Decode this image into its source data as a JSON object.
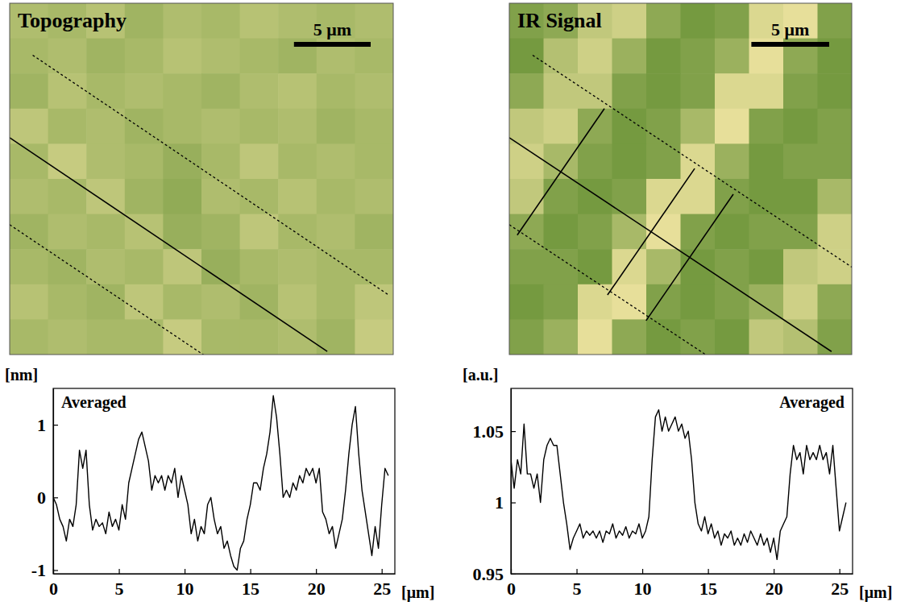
{
  "chart_data": [
    {
      "type": "heatmap",
      "title": "Topography",
      "xlim": [
        0,
        25
      ],
      "ylim": [
        0,
        23
      ],
      "tick_labels": false,
      "clim": [
        -1,
        1
      ],
      "cells": [
        [
          0.1,
          0,
          0.2,
          -0.1,
          0.1,
          0,
          0.2,
          0.1,
          0,
          0.1
        ],
        [
          0,
          0.1,
          -0.1,
          0,
          0.2,
          0.1,
          0,
          -0.1,
          0.1,
          0
        ],
        [
          -0.1,
          0.2,
          0,
          0.1,
          0,
          -0.1,
          0.1,
          0.2,
          0,
          0.1
        ],
        [
          0.3,
          0,
          0.1,
          -0.1,
          0,
          0.1,
          0,
          0.1,
          -0.1,
          0
        ],
        [
          0,
          0.4,
          0.1,
          0,
          -0.2,
          0,
          0.3,
          0,
          0.1,
          0
        ],
        [
          0.1,
          0,
          0.3,
          -0.1,
          -0.3,
          0.1,
          0,
          0.2,
          0,
          0.1
        ],
        [
          -0.1,
          0.1,
          0,
          0.2,
          -0.2,
          -0.1,
          0.3,
          0,
          0.1,
          -0.1
        ],
        [
          0,
          -0.1,
          0.1,
          0,
          0.3,
          -0.2,
          0,
          0.1,
          0,
          0
        ],
        [
          0.2,
          0,
          -0.1,
          0.3,
          0,
          0.1,
          -0.1,
          0.2,
          0,
          0.3
        ],
        [
          0,
          0.1,
          0,
          0,
          0.4,
          0,
          0,
          0.1,
          -0.1,
          0.4
        ]
      ],
      "scale_bar": {
        "length": 5,
        "label": "5 μm"
      },
      "lines": [
        {
          "x": [
            0,
            20.7
          ],
          "y": [
            8.8,
            22.8
          ],
          "line_style": "solid"
        },
        {
          "x": [
            1.5,
            24.7
          ],
          "y": [
            3.4,
            19.1
          ],
          "line_style": "dashed"
        },
        {
          "x": [
            0,
            13.2
          ],
          "y": [
            14.5,
            23.4
          ],
          "line_style": "dashed"
        }
      ]
    },
    {
      "type": "heatmap",
      "title": "IR Signal",
      "xlim": [
        0,
        22
      ],
      "ylim": [
        0,
        23
      ],
      "tick_labels": false,
      "clim": [
        0.95,
        1.07
      ],
      "cells": [
        [
          0.98,
          0.99,
          1.03,
          1.04,
          0.99,
          0.97,
          0.98,
          1.05,
          1.06,
          0.98
        ],
        [
          0.97,
          1.02,
          1.04,
          1.0,
          0.97,
          0.98,
          1.0,
          1.06,
          0.99,
          0.97
        ],
        [
          0.99,
          1.03,
          1.03,
          0.98,
          0.97,
          0.98,
          1.05,
          1.05,
          0.98,
          0.97
        ],
        [
          1.03,
          1.04,
          0.99,
          0.97,
          0.98,
          1.01,
          1.06,
          0.98,
          0.97,
          0.98
        ],
        [
          1.04,
          1.01,
          0.98,
          0.97,
          0.98,
          1.05,
          1.0,
          0.97,
          0.98,
          0.98
        ],
        [
          1.03,
          0.98,
          0.97,
          0.98,
          1.05,
          1.05,
          0.98,
          0.97,
          0.97,
          1.01
        ],
        [
          0.99,
          0.97,
          0.98,
          1.01,
          1.06,
          0.98,
          0.97,
          0.98,
          0.98,
          1.04
        ],
        [
          0.98,
          0.98,
          0.97,
          1.05,
          1.01,
          0.97,
          0.98,
          0.97,
          1.03,
          1.04
        ],
        [
          0.97,
          0.98,
          1.05,
          1.06,
          0.98,
          0.97,
          0.98,
          1.0,
          1.04,
          0.99
        ],
        [
          0.98,
          1.0,
          1.06,
          0.99,
          0.97,
          0.98,
          0.97,
          1.03,
          1.02,
          0.98
        ]
      ],
      "scale_bar": {
        "length": 5,
        "label": "5 μm"
      },
      "lines": [
        {
          "x": [
            0,
            20.7
          ],
          "y": [
            8.8,
            22.8
          ],
          "line_style": "solid"
        },
        {
          "x": [
            1.5,
            24.7
          ],
          "y": [
            3.4,
            19.1
          ],
          "line_style": "dashed"
        },
        {
          "x": [
            0,
            13.2
          ],
          "y": [
            14.5,
            23.4
          ],
          "line_style": "dashed"
        },
        {
          "x": [
            0.51,
            6.11
          ],
          "y": [
            15.18,
            6.9
          ],
          "line_style": "solid"
        },
        {
          "x": [
            6.31,
            11.91
          ],
          "y": [
            19.1,
            10.82
          ],
          "line_style": "solid"
        },
        {
          "x": [
            8.79,
            14.39
          ],
          "y": [
            20.78,
            12.5
          ],
          "line_style": "solid"
        }
      ]
    },
    {
      "type": "line",
      "y_label": "[nm]",
      "x_label": "[μm]",
      "annotation": "Averaged",
      "xlim": [
        0,
        26
      ],
      "ylim": [
        -1.05,
        1.5
      ],
      "xticks": [
        0,
        5,
        10,
        15,
        20,
        25
      ],
      "yticks": [
        -1,
        0,
        1
      ],
      "x": [
        0,
        0.25,
        0.5,
        0.75,
        1,
        1.25,
        1.5,
        1.75,
        2,
        2.25,
        2.5,
        2.75,
        3,
        3.25,
        3.5,
        3.75,
        4,
        4.25,
        4.5,
        4.75,
        5,
        5.25,
        5.5,
        5.75,
        6,
        6.25,
        6.5,
        6.75,
        7,
        7.25,
        7.5,
        7.75,
        8,
        8.25,
        8.5,
        8.75,
        9,
        9.25,
        9.5,
        9.75,
        10,
        10.25,
        10.5,
        10.75,
        11,
        11.25,
        11.5,
        11.75,
        12,
        12.25,
        12.5,
        12.75,
        13,
        13.25,
        13.5,
        13.75,
        14,
        14.25,
        14.5,
        14.75,
        15,
        15.25,
        15.5,
        15.75,
        16,
        16.25,
        16.5,
        16.75,
        17,
        17.25,
        17.5,
        17.75,
        18,
        18.25,
        18.5,
        18.75,
        19,
        19.25,
        19.5,
        19.75,
        20,
        20.25,
        20.5,
        20.75,
        21,
        21.25,
        21.5,
        21.75,
        22,
        22.25,
        22.5,
        22.75,
        23,
        23.25,
        23.5,
        23.75,
        24,
        24.25,
        24.5,
        24.75,
        25,
        25.25,
        25.5
      ],
      "series": [
        {
          "color": "#000000",
          "values": [
            0,
            -0.1,
            -0.3,
            -0.4,
            -0.6,
            -0.3,
            -0.4,
            -0.1,
            0.65,
            0.4,
            0.65,
            -0.1,
            -0.45,
            -0.3,
            -0.4,
            -0.35,
            -0.5,
            -0.2,
            -0.4,
            -0.3,
            -0.45,
            -0.1,
            -0.3,
            0.2,
            0.4,
            0.6,
            0.8,
            0.9,
            0.7,
            0.5,
            0.1,
            0.3,
            0.2,
            0.3,
            0.1,
            0.3,
            0.2,
            0.4,
            0,
            0.3,
            0.1,
            -0.1,
            -0.5,
            -0.3,
            -0.6,
            -0.4,
            -0.5,
            -0.1,
            0,
            -0.3,
            -0.5,
            -0.4,
            -0.7,
            -0.6,
            -0.8,
            -0.95,
            -1,
            -0.7,
            -0.6,
            -0.3,
            -0.1,
            0.2,
            0.2,
            0.1,
            0.4,
            0.6,
            0.9,
            1.4,
            1.1,
            0.6,
            0,
            0.1,
            0,
            0.2,
            0.1,
            0.3,
            0.2,
            0.4,
            0.3,
            0.4,
            0.2,
            0.4,
            -0.2,
            -0.3,
            -0.5,
            -0.4,
            -0.7,
            -0.5,
            -0.3,
            0.1,
            0.6,
            1,
            1.25,
            0.6,
            0.1,
            -0.2,
            -0.5,
            -0.8,
            -0.4,
            -0.7,
            -0.1,
            0.4,
            0.3
          ]
        }
      ]
    },
    {
      "type": "line",
      "y_label": "[a.u.]",
      "x_label": "[μm]",
      "annotation": "Averaged",
      "xlim": [
        0,
        26
      ],
      "ylim": [
        0.95,
        1.08
      ],
      "xticks": [
        0,
        5,
        10,
        15,
        20,
        25
      ],
      "yticks": [
        0.95,
        1,
        1.05
      ],
      "x": [
        0,
        0.25,
        0.5,
        0.75,
        1,
        1.25,
        1.5,
        1.75,
        2,
        2.25,
        2.5,
        2.75,
        3,
        3.25,
        3.5,
        3.75,
        4,
        4.25,
        4.5,
        4.75,
        5,
        5.25,
        5.5,
        5.75,
        6,
        6.25,
        6.5,
        6.75,
        7,
        7.25,
        7.5,
        7.75,
        8,
        8.25,
        8.5,
        8.75,
        9,
        9.25,
        9.5,
        9.75,
        10,
        10.25,
        10.5,
        10.75,
        11,
        11.25,
        11.5,
        11.75,
        12,
        12.25,
        12.5,
        12.75,
        13,
        13.25,
        13.5,
        13.75,
        14,
        14.25,
        14.5,
        14.75,
        15,
        15.25,
        15.5,
        15.75,
        16,
        16.25,
        16.5,
        16.75,
        17,
        17.25,
        17.5,
        17.75,
        18,
        18.25,
        18.5,
        18.75,
        19,
        19.25,
        19.5,
        19.75,
        20,
        20.25,
        20.5,
        20.75,
        21,
        21.25,
        21.5,
        21.75,
        22,
        22.25,
        22.5,
        22.75,
        23,
        23.25,
        23.5,
        23.75,
        24,
        24.25,
        24.5,
        24.75,
        25,
        25.25,
        25.5
      ],
      "series": [
        {
          "color": "#000000",
          "values": [
            1.03,
            1.01,
            1.03,
            1.02,
            1.055,
            1.02,
            1.02,
            1.01,
            1.02,
            1.0,
            1.03,
            1.04,
            1.045,
            1.04,
            1.04,
            1.02,
            1.0,
            0.985,
            0.967,
            0.975,
            0.98,
            0.985,
            0.975,
            0.98,
            0.977,
            0.98,
            0.975,
            0.98,
            0.972,
            0.98,
            0.978,
            0.985,
            0.975,
            0.98,
            0.977,
            0.983,
            0.975,
            0.98,
            0.978,
            0.985,
            0.975,
            0.98,
            0.99,
            1.03,
            1.06,
            1.065,
            1.05,
            1.06,
            1.05,
            1.055,
            1.06,
            1.05,
            1.055,
            1.045,
            1.05,
            1.03,
            1.0,
            0.985,
            0.98,
            0.99,
            0.978,
            0.985,
            0.975,
            0.98,
            0.97,
            0.978,
            0.975,
            0.98,
            0.97,
            0.975,
            0.97,
            0.978,
            0.972,
            0.98,
            0.975,
            0.97,
            0.978,
            0.97,
            0.975,
            0.965,
            0.975,
            0.96,
            0.98,
            0.985,
            0.99,
            1.02,
            1.04,
            1.03,
            1.035,
            1.02,
            1.04,
            1.03,
            1.035,
            1.03,
            1.04,
            1.03,
            1.035,
            1.02,
            1.04,
            1.01,
            0.98,
            0.99,
            1.0
          ]
        }
      ]
    }
  ]
}
